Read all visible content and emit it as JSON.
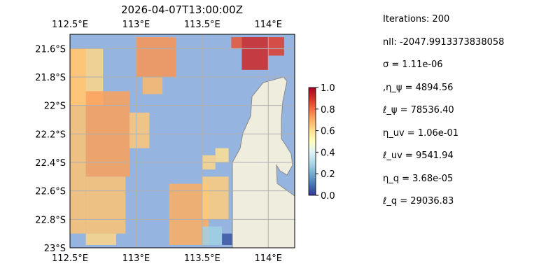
{
  "chart_data": {
    "type": "heatmap",
    "title": "2026-04-07T13:00:00Z",
    "x_ticks": [
      "112.5°E",
      "113°E",
      "113.5°E",
      "114°E"
    ],
    "x_tick_values": [
      112.5,
      113.0,
      113.5,
      114.0
    ],
    "y_ticks": [
      "21.6°S",
      "21.8°S",
      "22°S",
      "22.2°S",
      "22.4°S",
      "22.6°S",
      "22.8°S",
      "23°S"
    ],
    "y_tick_values": [
      -21.6,
      -21.8,
      -22.0,
      -22.2,
      -22.4,
      -22.6,
      -22.8,
      -23.0
    ],
    "xlim": [
      112.5,
      114.2
    ],
    "ylim": [
      -23.0,
      -21.5
    ],
    "grid": true,
    "colormap": "RdYlBu_r",
    "colorbar": {
      "ticks": [
        "0.0",
        "0.2",
        "0.4",
        "0.6",
        "0.8",
        "1.0"
      ],
      "tick_values": [
        0.0,
        0.2,
        0.4,
        0.6,
        0.8,
        1.0
      ],
      "range": [
        0,
        1
      ]
    },
    "colors": {
      "ocean": "#95b4df",
      "land": "#efedde",
      "coast": "#888888",
      "grid": "#b0b0b0"
    },
    "regions": [
      {
        "lon": [
          112.5,
          112.75
        ],
        "lat": [
          -22.0,
          -21.6
        ],
        "value": 0.62
      },
      {
        "lon": [
          112.5,
          112.62
        ],
        "lat": [
          -22.9,
          -21.6
        ],
        "value": 0.66
      },
      {
        "lon": [
          112.62,
          112.95
        ],
        "lat": [
          -22.5,
          -21.9
        ],
        "value": 0.72
      },
      {
        "lon": [
          112.62,
          112.92
        ],
        "lat": [
          -22.9,
          -22.5
        ],
        "value": 0.66
      },
      {
        "lon": [
          112.62,
          112.85
        ],
        "lat": [
          -22.98,
          -22.9
        ],
        "value": 0.62
      },
      {
        "lon": [
          112.95,
          113.1
        ],
        "lat": [
          -22.3,
          -22.05
        ],
        "value": 0.65
      },
      {
        "lon": [
          113.0,
          113.3
        ],
        "lat": [
          -21.8,
          -21.52
        ],
        "value": 0.74
      },
      {
        "lon": [
          113.05,
          113.2
        ],
        "lat": [
          -21.92,
          -21.8
        ],
        "value": 0.68
      },
      {
        "lon": [
          113.5,
          113.6
        ],
        "lat": [
          -22.45,
          -22.35
        ],
        "value": 0.62
      },
      {
        "lon": [
          113.6,
          113.7
        ],
        "lat": [
          -22.4,
          -22.3
        ],
        "value": 0.6
      },
      {
        "lon": [
          113.25,
          113.55
        ],
        "lat": [
          -22.98,
          -22.55
        ],
        "value": 0.7
      },
      {
        "lon": [
          113.5,
          113.7
        ],
        "lat": [
          -22.8,
          -22.5
        ],
        "value": 0.64
      },
      {
        "lon": [
          113.5,
          113.65
        ],
        "lat": [
          -22.98,
          -22.85
        ],
        "value": 0.28
      },
      {
        "lon": [
          113.65,
          113.8
        ],
        "lat": [
          -22.98,
          -22.9
        ],
        "value": 0.05
      },
      {
        "lon": [
          113.8,
          114.0
        ],
        "lat": [
          -21.75,
          -21.52
        ],
        "value": 0.92
      },
      {
        "lon": [
          114.0,
          114.12
        ],
        "lat": [
          -21.65,
          -21.52
        ],
        "value": 0.88
      },
      {
        "lon": [
          113.72,
          113.8
        ],
        "lat": [
          -21.6,
          -21.52
        ],
        "value": 0.84
      }
    ]
  },
  "params": [
    "Iterations: 200",
    "nll: -2047.9913373838058",
    "σ = 1.11e-06",
    ",η_ψ = 4894.56",
    "ℓ_ψ = 78536.40",
    "η_uv = 1.06e-01",
    "ℓ_uv = 9541.94",
    "η_q = 3.68e-05",
    "ℓ_q = 29036.83"
  ]
}
